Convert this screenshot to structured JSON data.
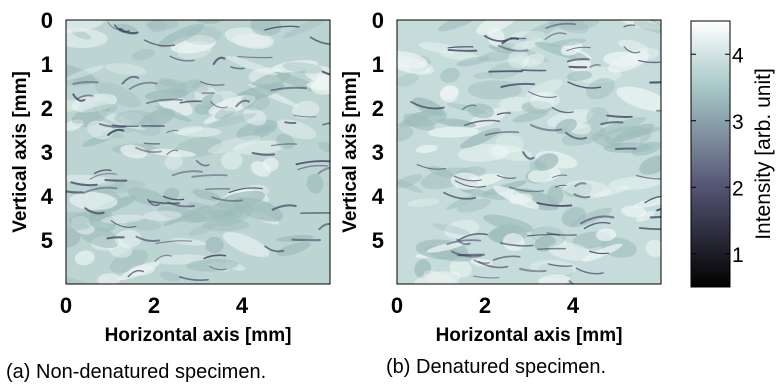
{
  "chart_data": [
    {
      "type": "heatmap",
      "caption": "(a) Non-denatured specimen.",
      "xlabel": "Horizontal axis [mm]",
      "ylabel": "Vertical axis [mm]",
      "xlim": [
        0,
        6
      ],
      "ylim": [
        6,
        0
      ],
      "xticks": [
        0,
        2,
        4
      ],
      "yticks": [
        0,
        1,
        2,
        3,
        4,
        5
      ],
      "colormap": "bone",
      "value_range": [
        0.5,
        4.5
      ],
      "texture_seed": 7
    },
    {
      "type": "heatmap",
      "caption": "(b) Denatured specimen.",
      "xlabel": "Horizontal axis [mm]",
      "ylabel": "Vertical axis [mm]",
      "xlim": [
        0,
        6
      ],
      "ylim": [
        6,
        0
      ],
      "xticks": [
        0,
        2,
        4
      ],
      "yticks": [
        0,
        1,
        2,
        3,
        4,
        5
      ],
      "colormap": "bone",
      "value_range": [
        0.5,
        4.5
      ],
      "texture_seed": 19
    }
  ],
  "colorbar": {
    "label": "Intensity [arb. unit]",
    "range": [
      0.5,
      4.5
    ],
    "ticks": [
      1,
      2,
      3,
      4
    ]
  }
}
